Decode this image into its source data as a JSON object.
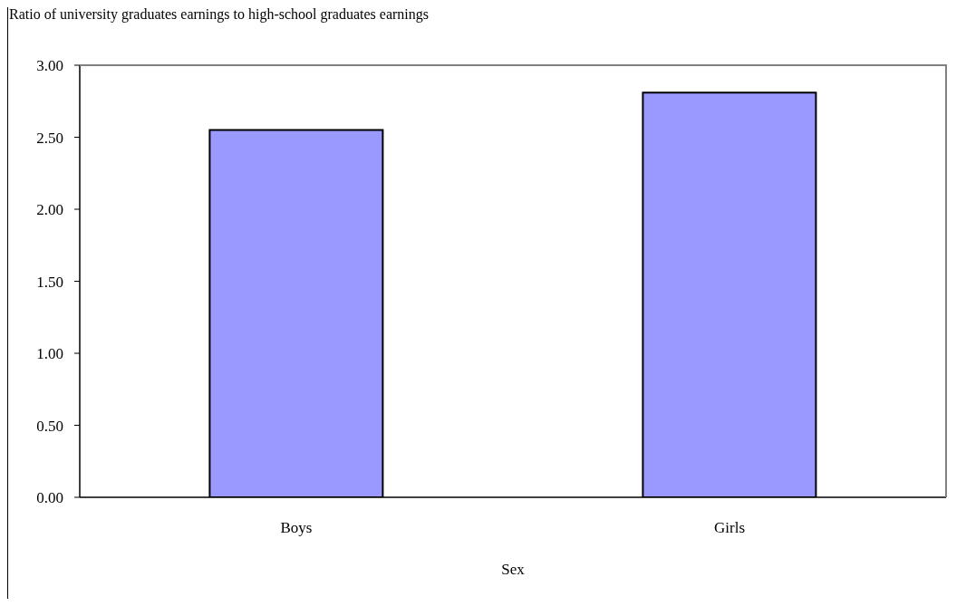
{
  "chart_data": {
    "type": "bar",
    "ylabel": "Ratio of university graduates earnings to high-school graduates earnings",
    "xlabel": "Sex",
    "categories": [
      "Boys",
      "Girls"
    ],
    "values": [
      2.55,
      2.81
    ],
    "color": "#9999ff",
    "ylim": [
      0,
      3
    ],
    "yticks": [
      {
        "value": 0,
        "label": "0.00"
      },
      {
        "value": 0.5,
        "label": "0.50"
      },
      {
        "value": 1,
        "label": "1.00"
      },
      {
        "value": 1.5,
        "label": "1.50"
      },
      {
        "value": 2,
        "label": "2.00"
      },
      {
        "value": 2.5,
        "label": "2.50"
      },
      {
        "value": 3,
        "label": "3.00"
      }
    ]
  }
}
